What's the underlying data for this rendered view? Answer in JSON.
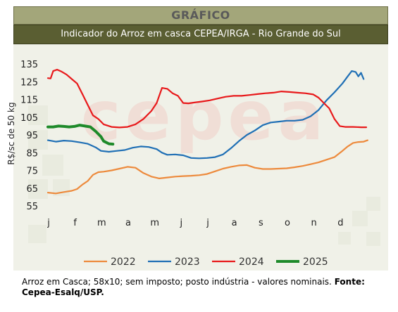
{
  "header": {
    "title": "GRÁFICO",
    "subtitle": "Indicador do Arroz em casca CEPEA/IRGA - Rio Grande do Sul"
  },
  "watermark": "cepea",
  "caption": {
    "text": "Arroz em Casca; 58x10; sem imposto; posto indústria - valores nominais.",
    "source": "Fonte: Cepea-Esalq/USP."
  },
  "chart_data": {
    "type": "line",
    "ylabel": "R$/sc de 50 kg",
    "xlabel": "",
    "ylim": [
      55,
      135
    ],
    "yticks": [
      135,
      125,
      115,
      105,
      95,
      85,
      75,
      65,
      55
    ],
    "xlim": [
      0,
      12
    ],
    "categories": [
      "j",
      "f",
      "m",
      "a",
      "m",
      "j",
      "j",
      "a",
      "s",
      "o",
      "n",
      "d"
    ],
    "legend_position": "bottom",
    "grid": false,
    "series": [
      {
        "name": "2022",
        "color": "#ed8a3c",
        "points": [
          [
            0,
            62.5
          ],
          [
            0.3,
            62
          ],
          [
            0.6,
            62.8
          ],
          [
            0.9,
            63.5
          ],
          [
            1.1,
            64.5
          ],
          [
            1.3,
            67
          ],
          [
            1.5,
            69
          ],
          [
            1.7,
            72.5
          ],
          [
            1.9,
            74
          ],
          [
            2.1,
            74.3
          ],
          [
            2.4,
            75
          ],
          [
            2.7,
            76
          ],
          [
            3.0,
            77
          ],
          [
            3.3,
            76.5
          ],
          [
            3.6,
            73.5
          ],
          [
            3.9,
            71.5
          ],
          [
            4.2,
            70.5
          ],
          [
            4.5,
            71
          ],
          [
            4.8,
            71.5
          ],
          [
            5.1,
            71.8
          ],
          [
            5.4,
            72
          ],
          [
            5.7,
            72.3
          ],
          [
            6.0,
            73
          ],
          [
            6.3,
            74.5
          ],
          [
            6.6,
            76
          ],
          [
            6.9,
            77
          ],
          [
            7.2,
            77.8
          ],
          [
            7.5,
            78
          ],
          [
            7.8,
            76.5
          ],
          [
            8.1,
            75.8
          ],
          [
            8.4,
            75.8
          ],
          [
            8.7,
            76
          ],
          [
            9.0,
            76.2
          ],
          [
            9.3,
            76.8
          ],
          [
            9.6,
            77.5
          ],
          [
            9.9,
            78.5
          ],
          [
            10.2,
            79.5
          ],
          [
            10.5,
            81
          ],
          [
            10.8,
            82.5
          ],
          [
            11.1,
            86
          ],
          [
            11.3,
            88.5
          ],
          [
            11.5,
            90.5
          ],
          [
            11.7,
            91
          ],
          [
            11.9,
            91.2
          ],
          [
            12.05,
            92
          ]
        ]
      },
      {
        "name": "2023",
        "color": "#1f6fb5",
        "points": [
          [
            0,
            92
          ],
          [
            0.3,
            91.2
          ],
          [
            0.6,
            91.8
          ],
          [
            0.9,
            91.5
          ],
          [
            1.2,
            90.8
          ],
          [
            1.5,
            90
          ],
          [
            1.8,
            88
          ],
          [
            2.0,
            86
          ],
          [
            2.3,
            85.5
          ],
          [
            2.6,
            86
          ],
          [
            2.9,
            86.5
          ],
          [
            3.2,
            87.8
          ],
          [
            3.5,
            88.5
          ],
          [
            3.8,
            88.2
          ],
          [
            4.1,
            87
          ],
          [
            4.3,
            85
          ],
          [
            4.5,
            83.8
          ],
          [
            4.8,
            84
          ],
          [
            5.1,
            83.5
          ],
          [
            5.4,
            82
          ],
          [
            5.7,
            81.8
          ],
          [
            6.0,
            82
          ],
          [
            6.3,
            82.5
          ],
          [
            6.6,
            84
          ],
          [
            6.9,
            87.5
          ],
          [
            7.2,
            91.5
          ],
          [
            7.5,
            95
          ],
          [
            7.8,
            97.5
          ],
          [
            8.1,
            100.5
          ],
          [
            8.4,
            102
          ],
          [
            8.7,
            102.5
          ],
          [
            9.0,
            103
          ],
          [
            9.3,
            103
          ],
          [
            9.6,
            103.5
          ],
          [
            9.9,
            105.5
          ],
          [
            10.2,
            109
          ],
          [
            10.5,
            114.5
          ],
          [
            10.8,
            119
          ],
          [
            11.1,
            124
          ],
          [
            11.3,
            128
          ],
          [
            11.45,
            131
          ],
          [
            11.6,
            130.5
          ],
          [
            11.7,
            128
          ],
          [
            11.8,
            130
          ],
          [
            11.9,
            126.5
          ]
        ]
      },
      {
        "name": "2024",
        "color": "#e8191b",
        "points": [
          [
            0,
            127
          ],
          [
            0.1,
            126.8
          ],
          [
            0.2,
            131
          ],
          [
            0.35,
            131.8
          ],
          [
            0.5,
            130.8
          ],
          [
            0.7,
            129
          ],
          [
            0.9,
            126.5
          ],
          [
            1.1,
            124
          ],
          [
            1.3,
            118
          ],
          [
            1.5,
            112
          ],
          [
            1.7,
            106
          ],
          [
            1.9,
            104
          ],
          [
            2.1,
            101
          ],
          [
            2.4,
            99.5
          ],
          [
            2.7,
            99.2
          ],
          [
            3.0,
            99.5
          ],
          [
            3.3,
            101
          ],
          [
            3.6,
            104
          ],
          [
            3.9,
            108.5
          ],
          [
            4.1,
            113
          ],
          [
            4.3,
            121.5
          ],
          [
            4.5,
            121
          ],
          [
            4.7,
            118.5
          ],
          [
            4.9,
            117
          ],
          [
            5.1,
            113
          ],
          [
            5.3,
            112.8
          ],
          [
            5.5,
            113.2
          ],
          [
            5.8,
            113.8
          ],
          [
            6.1,
            114.5
          ],
          [
            6.4,
            115.5
          ],
          [
            6.7,
            116.5
          ],
          [
            7.0,
            117
          ],
          [
            7.3,
            117
          ],
          [
            7.6,
            117.5
          ],
          [
            7.9,
            118
          ],
          [
            8.2,
            118.5
          ],
          [
            8.5,
            118.8
          ],
          [
            8.8,
            119.5
          ],
          [
            9.1,
            119.2
          ],
          [
            9.4,
            118.8
          ],
          [
            9.7,
            118.5
          ],
          [
            10.0,
            117.8
          ],
          [
            10.2,
            116
          ],
          [
            10.4,
            113
          ],
          [
            10.6,
            110
          ],
          [
            10.8,
            104
          ],
          [
            11.0,
            100
          ],
          [
            11.2,
            99.5
          ],
          [
            11.5,
            99.5
          ],
          [
            11.8,
            99.3
          ],
          [
            12.0,
            99.3
          ]
        ]
      },
      {
        "name": "2025",
        "color": "#1e8a2a",
        "points": [
          [
            0,
            99.5
          ],
          [
            0.2,
            99.5
          ],
          [
            0.4,
            100
          ],
          [
            0.6,
            99.8
          ],
          [
            0.8,
            99.5
          ],
          [
            1.0,
            99.8
          ],
          [
            1.2,
            100.5
          ],
          [
            1.4,
            100
          ],
          [
            1.6,
            99.5
          ],
          [
            1.8,
            97
          ],
          [
            2.0,
            94
          ],
          [
            2.1,
            91.5
          ],
          [
            2.3,
            90
          ],
          [
            2.45,
            89.8
          ]
        ]
      }
    ]
  }
}
